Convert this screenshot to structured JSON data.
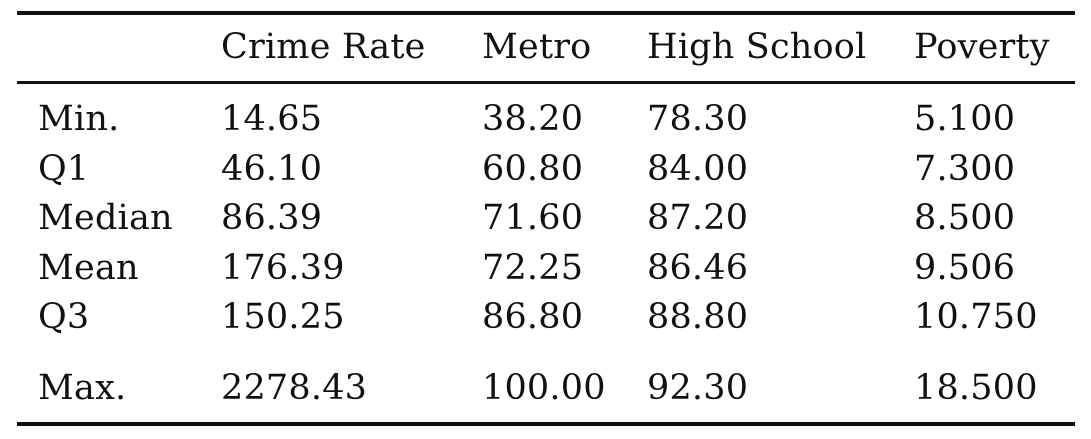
{
  "table": {
    "columns": [
      "",
      "Crime Rate",
      "Metro",
      "High School",
      "Poverty"
    ],
    "rows": [
      {
        "label": "Min.",
        "crime_rate": "14.65",
        "metro": "38.20",
        "high_school": "78.30",
        "poverty": "5.100"
      },
      {
        "label": "Q1",
        "crime_rate": "46.10",
        "metro": "60.80",
        "high_school": "84.00",
        "poverty": "7.300"
      },
      {
        "label": "Median",
        "crime_rate": "86.39",
        "metro": "71.60",
        "high_school": "87.20",
        "poverty": "8.500"
      },
      {
        "label": "Mean",
        "crime_rate": "176.39",
        "metro": "72.25",
        "high_school": "86.46",
        "poverty": "9.506"
      },
      {
        "label": "Q3",
        "crime_rate": "150.25",
        "metro": "86.80",
        "high_school": "88.80",
        "poverty": "10.750"
      },
      {
        "label": "Max.",
        "crime_rate": "2278.43",
        "metro": "100.00",
        "high_school": "92.30",
        "poverty": "18.500"
      }
    ]
  }
}
